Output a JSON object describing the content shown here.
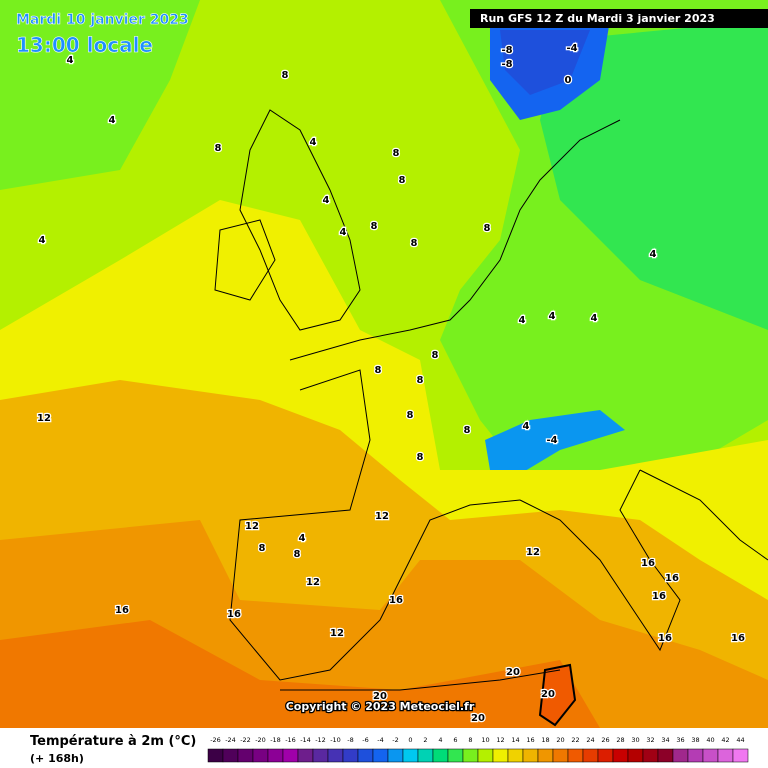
{
  "header": {
    "date": "Mardi 10 janvier 2023",
    "time": "13:00 locale",
    "run": "Run GFS 12 Z du Mardi 3 janvier 2023"
  },
  "copyright": "Copyright © 2023 Meteociel.fr",
  "legend": {
    "title": "Température à 2m (°C)",
    "lead": "(+ 168h)",
    "ticks": [
      -26,
      -24,
      -22,
      -20,
      -18,
      -16,
      -14,
      -12,
      -10,
      -8,
      -6,
      -4,
      -2,
      0,
      2,
      4,
      6,
      8,
      10,
      12,
      14,
      16,
      18,
      20,
      22,
      24,
      26,
      28,
      30,
      32,
      34,
      36,
      38,
      40,
      42,
      44
    ],
    "colors": [
      "#3c0046",
      "#50005a",
      "#64006e",
      "#780082",
      "#8c0096",
      "#a000aa",
      "#6e1e8c",
      "#5a28a0",
      "#4632b4",
      "#323cc8",
      "#1e50dc",
      "#1464f0",
      "#0a96f0",
      "#00c8f0",
      "#00d2b4",
      "#00dc78",
      "#32e650",
      "#78f01e",
      "#b4f000",
      "#f0f000",
      "#f0d200",
      "#f0b400",
      "#f09600",
      "#f07800",
      "#f05a00",
      "#e63c00",
      "#dc1e00",
      "#c80000",
      "#b40000",
      "#a00014",
      "#8c0028",
      "#a0288c",
      "#b43cb4",
      "#c850c8",
      "#dc64dc",
      "#f078f0"
    ]
  },
  "map_labels": [
    4,
    4,
    4,
    8,
    8,
    4,
    8,
    8,
    4,
    4,
    8,
    8,
    8,
    8,
    4,
    4,
    4,
    4,
    8,
    8,
    8,
    8,
    8,
    12,
    12,
    12,
    12,
    16,
    16,
    16,
    16,
    16,
    16,
    20,
    20,
    20,
    20,
    0,
    -4,
    -8,
    -8,
    -4,
    4,
    4,
    8,
    8,
    12,
    12,
    16,
    16
  ]
}
